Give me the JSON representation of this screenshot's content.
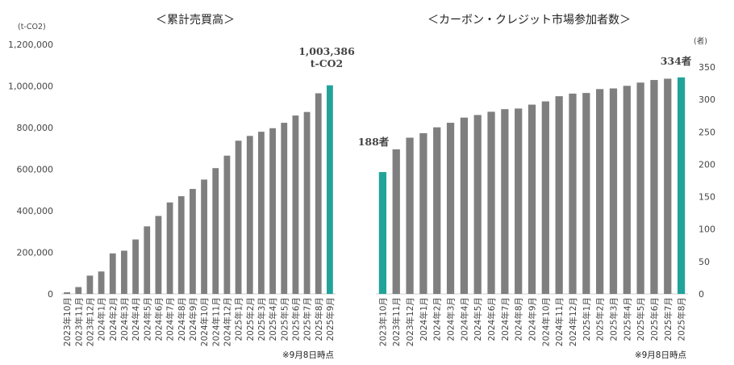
{
  "colors": {
    "bar": "#7f7f7f",
    "highlight": "#22a39a",
    "axis": "#d0d0d0"
  },
  "chart_data": [
    {
      "type": "bar",
      "title": "＜累計売買高＞",
      "unit_label": "(t-CO2)",
      "ylim": [
        0,
        1200000
      ],
      "yticks": [
        "1,200,000",
        "1,000,000",
        "800,000",
        "600,000",
        "400,000",
        "200,000",
        "0"
      ],
      "categories": [
        "2023年10月",
        "2023年11月",
        "2023年12月",
        "2024年1月",
        "2024年2月",
        "2024年3月",
        "2024年4月",
        "2024年5月",
        "2024年6月",
        "2024年7月",
        "2024年8月",
        "2024年9月",
        "2024年10月",
        "2024年11月",
        "2024年12月",
        "2025年1月",
        "2025年2月",
        "2025年3月",
        "2025年4月",
        "2025年5月",
        "2025年6月",
        "2025年7月",
        "2025年8月",
        "2025年9月"
      ],
      "values": [
        8000,
        33000,
        88000,
        108000,
        195000,
        208000,
        262000,
        325000,
        375000,
        440000,
        470000,
        505000,
        550000,
        605000,
        665000,
        737000,
        760000,
        780000,
        797000,
        823000,
        858000,
        875000,
        965000,
        1003386
      ],
      "highlight_index": 23,
      "callout_value": "1,003,386",
      "callout_unit": "t-CO2",
      "note": "※9月8日時点"
    },
    {
      "type": "bar",
      "title": "＜カーボン・クレジット市場参加者数＞",
      "unit_label": "(者)",
      "ylim": [
        0,
        350
      ],
      "yticks": [
        "350",
        "300",
        "250",
        "200",
        "150",
        "100",
        "50",
        "0"
      ],
      "categories": [
        "2023年10月",
        "2023年11月",
        "2023年12月",
        "2024年1月",
        "2024年2月",
        "2024年3月",
        "2024年4月",
        "2024年5月",
        "2024年6月",
        "2024年7月",
        "2024年8月",
        "2024年9月",
        "2024年10月",
        "2024年11月",
        "2024年12月",
        "2025年1月",
        "2025年2月",
        "2025年3月",
        "2025年4月",
        "2025年5月",
        "2025年6月",
        "2025年7月",
        "2025年8月"
      ],
      "values": [
        188,
        223,
        241,
        248,
        257,
        264,
        272,
        276,
        281,
        285,
        286,
        292,
        297,
        305,
        309,
        310,
        316,
        317,
        321,
        326,
        330,
        332,
        334
      ],
      "highlight_indices": [
        0,
        22
      ],
      "first_callout": "188者",
      "last_callout": "334者",
      "note": "※9月8日時点"
    }
  ]
}
